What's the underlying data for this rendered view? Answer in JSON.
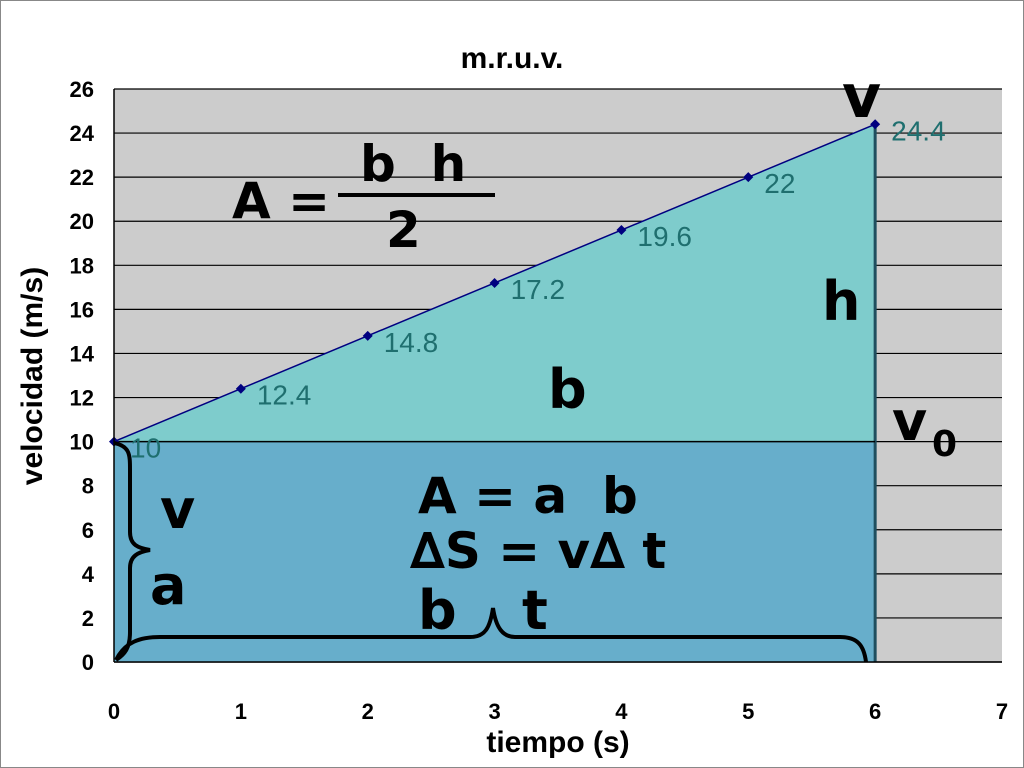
{
  "chart_data": {
    "type": "line",
    "title": "m.r.u.v.",
    "xlabel": "tiempo (s)",
    "ylabel": "velocidad (m/s)",
    "xlim": [
      0,
      7
    ],
    "ylim": [
      0,
      26
    ],
    "x_ticks": [
      "0",
      "1",
      "2",
      "3",
      "4",
      "5",
      "6",
      "7"
    ],
    "y_ticks": [
      "0",
      "2",
      "4",
      "6",
      "8",
      "10",
      "12",
      "14",
      "16",
      "18",
      "20",
      "22",
      "24",
      "26"
    ],
    "grid": true,
    "x": [
      0,
      1,
      2,
      3,
      4,
      5,
      6
    ],
    "y": [
      10,
      12.4,
      14.8,
      17.2,
      19.6,
      22,
      24.4
    ],
    "data_labels": [
      "10",
      "12.4",
      "14.8",
      "17.2",
      "19.6",
      "22",
      "24.4"
    ],
    "colors": {
      "plot_bg": "#cccccc",
      "rectangle_fill": "#67aecb",
      "triangle_fill": "#7ecccc",
      "line": "#000080",
      "marker": "#000080"
    },
    "annotations": {
      "triangle_formula_lhs": "A =",
      "triangle_formula_num": "b  h",
      "triangle_formula_den": "2",
      "triangle_base": "b",
      "triangle_height": "h",
      "top_velocity": "v",
      "initial_velocity": "v",
      "initial_velocity_sub": "0",
      "rect_formula": "A = a  b",
      "displacement_formula": "∆S = v∆ t",
      "brace_v": "v",
      "brace_a": "a",
      "brace_b": "b",
      "brace_t": "t"
    }
  }
}
